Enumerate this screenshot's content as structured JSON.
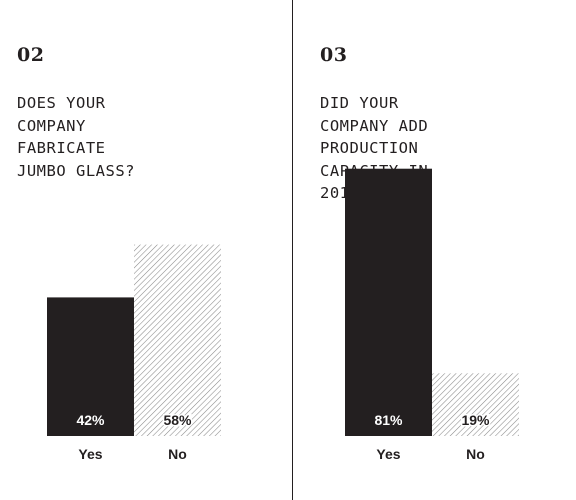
{
  "chart_data": [
    {
      "type": "bar",
      "number": "02",
      "title_lines": [
        "DOES YOUR",
        "COMPANY",
        "FABRICATE",
        "JUMBO GLASS?"
      ],
      "categories": [
        "Yes",
        "No"
      ],
      "values": [
        42,
        58
      ],
      "value_labels": [
        "42%",
        "58%"
      ],
      "colors": [
        "#231f20",
        "hatched"
      ]
    },
    {
      "type": "bar",
      "number": "03",
      "title_lines": [
        "DID YOUR",
        "COMPANY ADD",
        "PRODUCTION",
        "CAPACITY IN",
        "2018?"
      ],
      "categories": [
        "Yes",
        "No"
      ],
      "values": [
        81,
        19
      ],
      "value_labels": [
        "81%",
        "19%"
      ],
      "colors": [
        "#231f20",
        "hatched"
      ]
    }
  ]
}
